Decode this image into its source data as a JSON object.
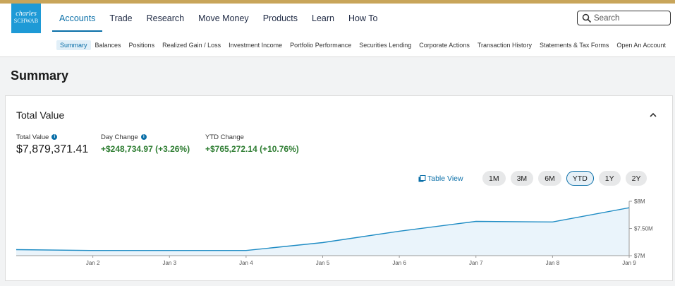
{
  "brand": {
    "line1": "charles",
    "line2": "SCHWAB"
  },
  "nav": {
    "items": [
      {
        "label": "Accounts",
        "active": true
      },
      {
        "label": "Trade"
      },
      {
        "label": "Research"
      },
      {
        "label": "Move Money"
      },
      {
        "label": "Products"
      },
      {
        "label": "Learn"
      },
      {
        "label": "How To"
      }
    ]
  },
  "search": {
    "placeholder": "Search"
  },
  "subnav": {
    "items": [
      {
        "label": "Summary",
        "active": true
      },
      {
        "label": "Balances"
      },
      {
        "label": "Positions"
      },
      {
        "label": "Realized Gain / Loss"
      },
      {
        "label": "Investment Income"
      },
      {
        "label": "Portfolio Performance"
      },
      {
        "label": "Securities Lending"
      },
      {
        "label": "Corporate Actions"
      },
      {
        "label": "Transaction History"
      },
      {
        "label": "Statements & Tax Forms"
      },
      {
        "label": "Open An Account"
      }
    ]
  },
  "page": {
    "title": "Summary"
  },
  "card": {
    "title": "Total Value",
    "collapse_icon": "chevron-up-icon",
    "total": {
      "label": "Total Value",
      "value": "$7,879,371.41"
    },
    "day_change": {
      "label": "Day Change",
      "value": "+$248,734.97 (+3.26%)"
    },
    "ytd_change": {
      "label": "YTD Change",
      "value": "+$765,272.14 (+10.76%)"
    },
    "table_view_label": "Table View",
    "ranges": [
      {
        "label": "1M"
      },
      {
        "label": "3M"
      },
      {
        "label": "6M"
      },
      {
        "label": "YTD",
        "active": true
      },
      {
        "label": "1Y"
      },
      {
        "label": "2Y"
      }
    ]
  },
  "colors": {
    "accent": "#0a6fa8",
    "positive": "#2e7d32",
    "brand_blue": "#1e9ad6",
    "line": "#1f8cc4",
    "area": "#eaf4fb"
  },
  "chart_data": {
    "type": "area",
    "x": [
      "Jan 1",
      "Jan 2",
      "Jan 3",
      "Jan 4",
      "Jan 5",
      "Jan 6",
      "Jan 7",
      "Jan 8",
      "Jan 9"
    ],
    "x_tick_labels": [
      "Jan 2",
      "Jan 3",
      "Jan 4",
      "Jan 5",
      "Jan 6",
      "Jan 7",
      "Jan 8",
      "Jan 9"
    ],
    "values": [
      7110000,
      7095000,
      7095000,
      7095000,
      7240000,
      7450000,
      7630000,
      7620000,
      7880000
    ],
    "y_tick_labels": [
      "$8M",
      "$7.50M",
      "$7M"
    ],
    "y_ticks": [
      8000000,
      7500000,
      7000000
    ],
    "ylim": [
      7000000,
      8000000
    ],
    "y_axis_position": "right",
    "grid": false
  }
}
